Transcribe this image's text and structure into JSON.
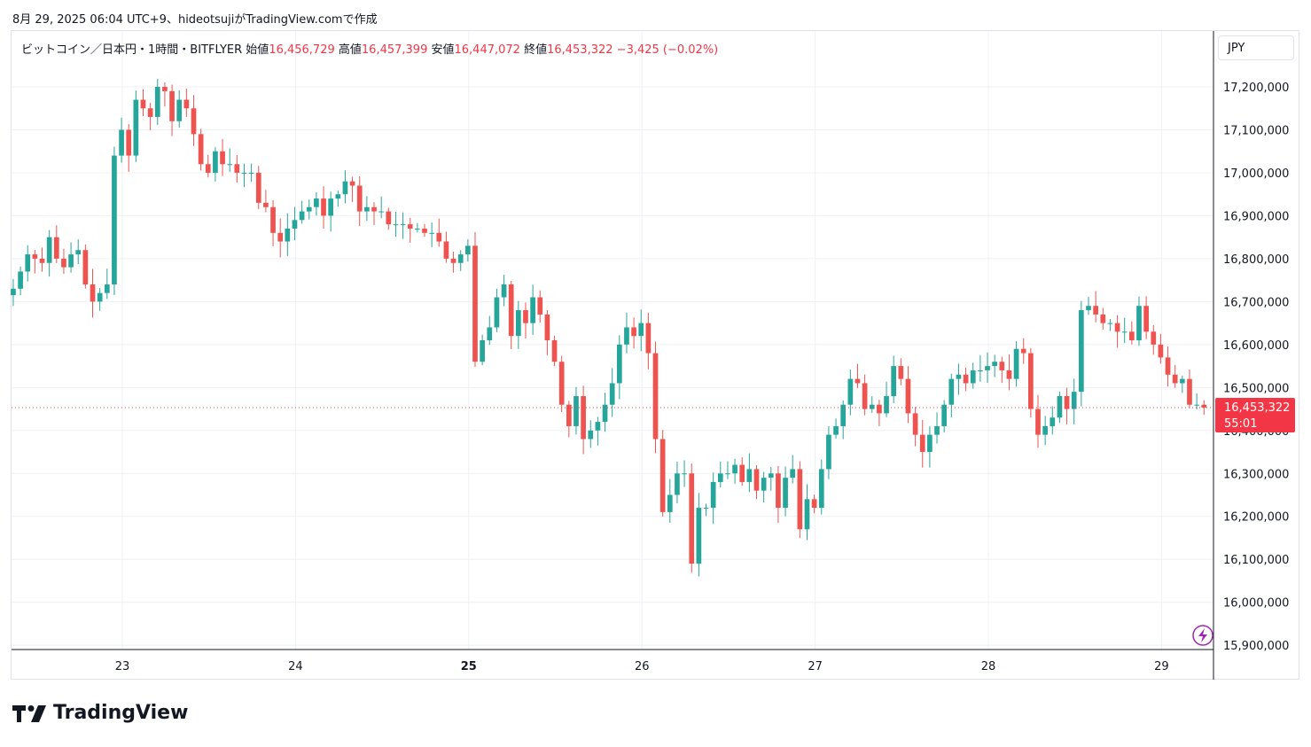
{
  "caption": "8月 29, 2025 06:04 UTC+9、hideotsujiがTradingView.comで作成",
  "legend": {
    "symbol": "ビットコイン／日本円・1時間・BITFLYER",
    "open_label": "始値",
    "open": "16,456,729",
    "high_label": "高値",
    "high": "16,457,399",
    "low_label": "安値",
    "low": "16,447,072",
    "close_label": "終値",
    "close": "16,453,322",
    "change": "−3,425 (−0.02%)"
  },
  "currency": "JPY",
  "price_tag": {
    "price": "16,453,322",
    "countdown": "55:01"
  },
  "brand": "TradingView",
  "colors": {
    "up": "#26a69a",
    "down": "#ef5350",
    "grid": "#eef0f4",
    "axis": "#131722",
    "last": "#f23645"
  },
  "chart_data": {
    "type": "candlestick",
    "interval": "1h",
    "ylim": [
      15890000,
      17330000
    ],
    "yticks": [
      15900000,
      16000000,
      16100000,
      16200000,
      16300000,
      16400000,
      16500000,
      16600000,
      16700000,
      16800000,
      16900000,
      17000000,
      17100000,
      17200000
    ],
    "ytick_labels": [
      "15,900,000",
      "16,000,000",
      "16,100,000",
      "16,200,000",
      "16,300,000",
      "16,400,000",
      "16,500,000",
      "16,600,000",
      "16,700,000",
      "16,800,000",
      "16,900,000",
      "17,000,000",
      "17,100,000",
      "17,200,000"
    ],
    "xticks": [
      {
        "label": "23",
        "day": 23,
        "bold": false
      },
      {
        "label": "24",
        "day": 24,
        "bold": false
      },
      {
        "label": "25",
        "day": 25,
        "bold": true
      },
      {
        "label": "26",
        "day": 26,
        "bold": false
      },
      {
        "label": "27",
        "day": 27,
        "bold": false
      },
      {
        "label": "28",
        "day": 28,
        "bold": false
      },
      {
        "label": "29",
        "day": 29,
        "bold": false
      }
    ],
    "xlim_days": [
      22.36,
      29.3
    ],
    "first_day": 22.37,
    "last_price": 16453322,
    "closes": [
      16730000,
      16770000,
      16810000,
      16800000,
      16790000,
      16850000,
      16800000,
      16780000,
      16810000,
      16820000,
      16740000,
      16700000,
      16720000,
      16740000,
      17040000,
      17100000,
      17040000,
      17170000,
      17150000,
      17130000,
      17200000,
      17190000,
      17120000,
      17170000,
      17150000,
      17090000,
      17020000,
      17000000,
      17050000,
      17020000,
      17020000,
      17000000,
      17000000,
      17000000,
      16930000,
      16920000,
      16860000,
      16840000,
      16870000,
      16890000,
      16910000,
      16920000,
      16940000,
      16900000,
      16940000,
      16950000,
      16980000,
      16970000,
      16910000,
      16920000,
      16910000,
      16910000,
      16880000,
      16880000,
      16880000,
      16870000,
      16870000,
      16860000,
      16860000,
      16840000,
      16800000,
      16790000,
      16810000,
      16830000,
      16560000,
      16610000,
      16640000,
      16710000,
      16740000,
      16620000,
      16680000,
      16650000,
      16710000,
      16670000,
      16610000,
      16560000,
      16460000,
      16410000,
      16480000,
      16380000,
      16400000,
      16420000,
      16460000,
      16510000,
      16600000,
      16640000,
      16620000,
      16650000,
      16580000,
      16380000,
      16210000,
      16250000,
      16300000,
      16300000,
      16090000,
      16220000,
      16220000,
      16280000,
      16300000,
      16300000,
      16320000,
      16280000,
      16310000,
      16260000,
      16290000,
      16300000,
      16220000,
      16290000,
      16310000,
      16170000,
      16240000,
      16220000,
      16310000,
      16390000,
      16410000,
      16460000,
      16520000,
      16510000,
      16450000,
      16460000,
      16440000,
      16480000,
      16550000,
      16520000,
      16440000,
      16390000,
      16350000,
      16390000,
      16410000,
      16460000,
      16520000,
      16530000,
      16510000,
      16540000,
      16540000,
      16550000,
      16560000,
      16540000,
      16520000,
      16590000,
      16580000,
      16450000,
      16390000,
      16410000,
      16430000,
      16480000,
      16450000,
      16490000,
      16680000,
      16690000,
      16670000,
      16650000,
      16650000,
      16630000,
      16630000,
      16610000,
      16690000,
      16630000,
      16600000,
      16570000,
      16530000,
      16510000,
      16520000,
      16460000,
      16460000,
      16453322
    ]
  }
}
